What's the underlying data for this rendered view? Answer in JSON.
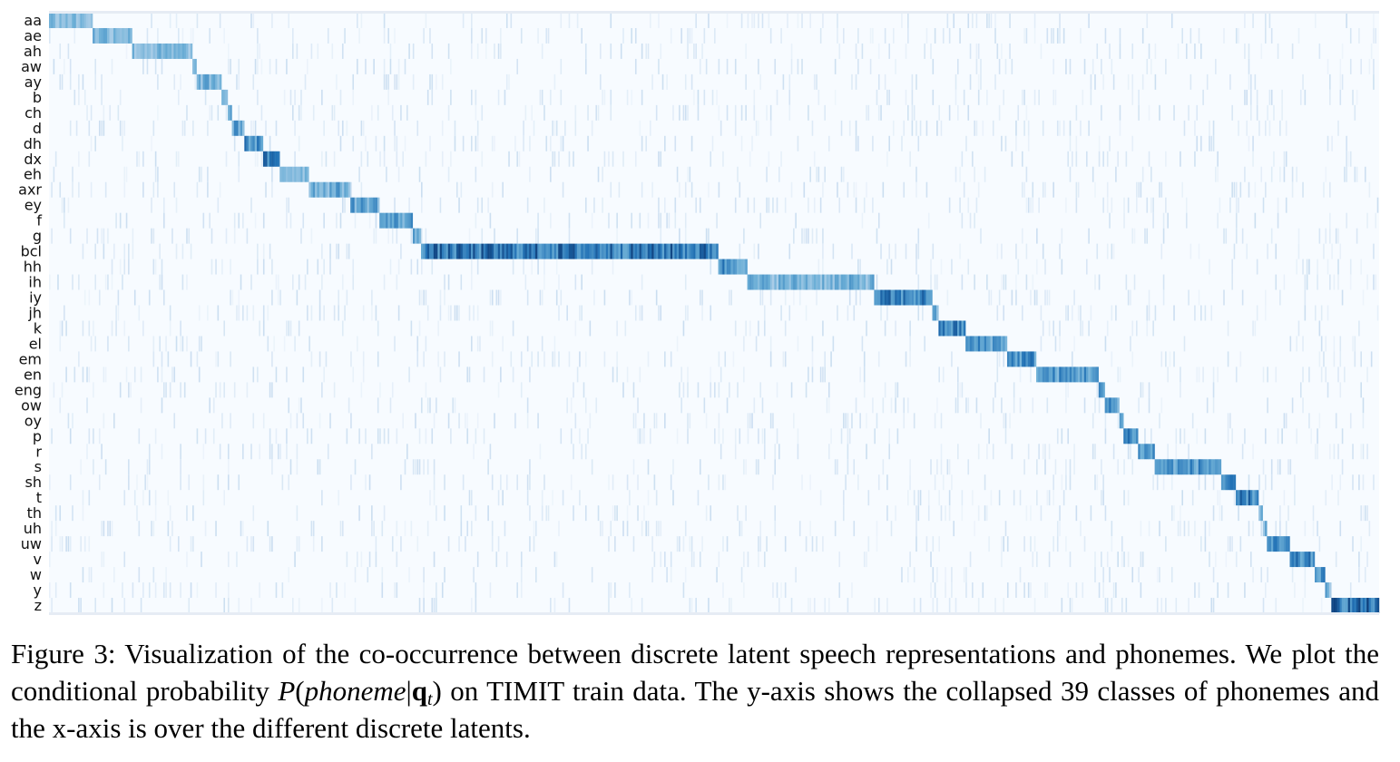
{
  "chart_data": {
    "type": "heatmap",
    "title": "",
    "xlabel": "",
    "ylabel": "",
    "colormap": "Blues",
    "colors": {
      "low": "#f7fbff",
      "high": "#08306b",
      "axis": "#e6ecf4"
    },
    "y_categories": [
      "aa",
      "ae",
      "ah",
      "aw",
      "ay",
      "b",
      "ch",
      "d",
      "dh",
      "dx",
      "eh",
      "axr",
      "ey",
      "f",
      "g",
      "bcl",
      "hh",
      "ih",
      "iy",
      "jh",
      "k",
      "el",
      "em",
      "en",
      "eng",
      "ow",
      "oy",
      "p",
      "r",
      "s",
      "sh",
      "t",
      "th",
      "uh",
      "uw",
      "v",
      "w",
      "y",
      "z"
    ],
    "x_ticks_shown": false,
    "num_latents": 640,
    "value_range": [
      0,
      1
    ],
    "diagonal_blocks": [
      {
        "phoneme": "aa",
        "latent_start": 0,
        "latent_end": 21,
        "intensity": 0.55
      },
      {
        "phoneme": "ae",
        "latent_start": 21,
        "latent_end": 40,
        "intensity": 0.6
      },
      {
        "phoneme": "ah",
        "latent_start": 40,
        "latent_end": 69,
        "intensity": 0.55
      },
      {
        "phoneme": "aw",
        "latent_start": 69,
        "latent_end": 71,
        "intensity": 0.5
      },
      {
        "phoneme": "ay",
        "latent_start": 71,
        "latent_end": 83,
        "intensity": 0.6
      },
      {
        "phoneme": "b",
        "latent_start": 83,
        "latent_end": 86,
        "intensity": 0.6
      },
      {
        "phoneme": "ch",
        "latent_start": 86,
        "latent_end": 88,
        "intensity": 0.6
      },
      {
        "phoneme": "d",
        "latent_start": 88,
        "latent_end": 94,
        "intensity": 0.7
      },
      {
        "phoneme": "dh",
        "latent_start": 94,
        "latent_end": 103,
        "intensity": 0.8
      },
      {
        "phoneme": "dx",
        "latent_start": 103,
        "latent_end": 111,
        "intensity": 0.85
      },
      {
        "phoneme": "eh",
        "latent_start": 111,
        "latent_end": 125,
        "intensity": 0.6
      },
      {
        "phoneme": "axr",
        "latent_start": 125,
        "latent_end": 145,
        "intensity": 0.65
      },
      {
        "phoneme": "ey",
        "latent_start": 145,
        "latent_end": 159,
        "intensity": 0.7
      },
      {
        "phoneme": "f",
        "latent_start": 159,
        "latent_end": 175,
        "intensity": 0.7
      },
      {
        "phoneme": "g",
        "latent_start": 175,
        "latent_end": 179,
        "intensity": 0.7
      },
      {
        "phoneme": "bcl",
        "latent_start": 179,
        "latent_end": 322,
        "intensity": 0.92
      },
      {
        "phoneme": "hh",
        "latent_start": 322,
        "latent_end": 336,
        "intensity": 0.8
      },
      {
        "phoneme": "ih",
        "latent_start": 336,
        "latent_end": 397,
        "intensity": 0.6
      },
      {
        "phoneme": "iy",
        "latent_start": 397,
        "latent_end": 425,
        "intensity": 0.85
      },
      {
        "phoneme": "jh",
        "latent_start": 425,
        "latent_end": 428,
        "intensity": 0.6
      },
      {
        "phoneme": "k",
        "latent_start": 428,
        "latent_end": 441,
        "intensity": 0.85
      },
      {
        "phoneme": "el",
        "latent_start": 441,
        "latent_end": 461,
        "intensity": 0.75
      },
      {
        "phoneme": "em",
        "latent_start": 461,
        "latent_end": 475,
        "intensity": 0.8
      },
      {
        "phoneme": "en",
        "latent_start": 475,
        "latent_end": 505,
        "intensity": 0.75
      },
      {
        "phoneme": "eng",
        "latent_start": 505,
        "latent_end": 508,
        "intensity": 0.7
      },
      {
        "phoneme": "ow",
        "latent_start": 508,
        "latent_end": 515,
        "intensity": 0.75
      },
      {
        "phoneme": "oy",
        "latent_start": 515,
        "latent_end": 517,
        "intensity": 0.7
      },
      {
        "phoneme": "p",
        "latent_start": 517,
        "latent_end": 524,
        "intensity": 0.85
      },
      {
        "phoneme": "r",
        "latent_start": 524,
        "latent_end": 532,
        "intensity": 0.75
      },
      {
        "phoneme": "s",
        "latent_start": 532,
        "latent_end": 564,
        "intensity": 0.75
      },
      {
        "phoneme": "sh",
        "latent_start": 564,
        "latent_end": 571,
        "intensity": 0.75
      },
      {
        "phoneme": "t",
        "latent_start": 571,
        "latent_end": 582,
        "intensity": 0.85
      },
      {
        "phoneme": "th",
        "latent_start": 582,
        "latent_end": 584,
        "intensity": 0.6
      },
      {
        "phoneme": "uh",
        "latent_start": 584,
        "latent_end": 586,
        "intensity": 0.6
      },
      {
        "phoneme": "uw",
        "latent_start": 586,
        "latent_end": 597,
        "intensity": 0.75
      },
      {
        "phoneme": "v",
        "latent_start": 597,
        "latent_end": 609,
        "intensity": 0.8
      },
      {
        "phoneme": "w",
        "latent_start": 609,
        "latent_end": 614,
        "intensity": 0.8
      },
      {
        "phoneme": "y",
        "latent_start": 614,
        "latent_end": 617,
        "intensity": 0.6
      },
      {
        "phoneme": "z",
        "latent_start": 617,
        "latent_end": 640,
        "intensity": 0.95
      }
    ]
  },
  "caption": {
    "label": "Figure 3:",
    "text_part1": " Visualization of the co-occurrence between discrete latent speech representations and phonemes. We plot the conditional probability ",
    "math_P": "P",
    "math_open": "(",
    "math_phoneme": "phoneme",
    "math_bar": "|",
    "math_q": "q",
    "math_sub": "t",
    "math_close": ")",
    "text_part2": " on TIMIT train data. The y-axis shows the collapsed 39 classes of phonemes and the x-axis is over the different discrete latents."
  }
}
